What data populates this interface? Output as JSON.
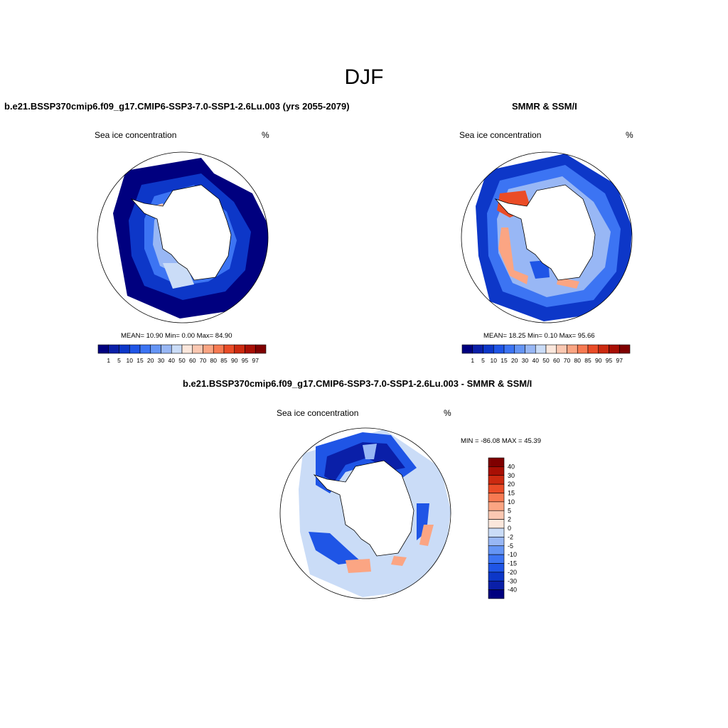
{
  "title": "DJF",
  "panels": {
    "model": {
      "title": "b.e21.BSSP370cmip6.f09_g17.CMIP6-SSP3-7.0-SSP1-2.6Lu.003 (yrs 2055-2079)",
      "left_label": "Sea ice concentration",
      "right_label": "%",
      "stats": "MEAN=  10.90  Min=   0.00  Max=  84.90"
    },
    "obs": {
      "title": "SMMR & SSM/I",
      "left_label": "Sea ice concentration",
      "right_label": "%",
      "stats": "MEAN=  18.25  Min=   0.10  Max=  95.66"
    },
    "diff": {
      "title": "b.e21.BSSP370cmip6.f09_g17.CMIP6-SSP3-7.0-SSP1-2.6Lu.003 - SMMR & SSM/I",
      "left_label": "Sea ice concentration",
      "right_label": "%",
      "stats": "MIN = -86.08 MAX =  45.39"
    }
  },
  "colorbars": {
    "concentration": {
      "labels": [
        "1",
        "5",
        "10",
        "15",
        "20",
        "30",
        "40",
        "50",
        "60",
        "70",
        "80",
        "85",
        "90",
        "95",
        "97"
      ],
      "colors": [
        "#00007f",
        "#0a1fa8",
        "#0d37c8",
        "#1f55e6",
        "#3c74f3",
        "#6595f5",
        "#98b7f5",
        "#cadcf7",
        "#fbe7dc",
        "#fbc8b2",
        "#fba583",
        "#f77a52",
        "#ea4c27",
        "#cc2a10",
        "#a80f04",
        "#7f0000"
      ]
    },
    "difference": {
      "labels": [
        "40",
        "30",
        "20",
        "15",
        "10",
        "5",
        "2",
        "0",
        "-2",
        "-5",
        "-10",
        "-15",
        "-20",
        "-30",
        "-40"
      ],
      "colors": [
        "#7f0000",
        "#a80f04",
        "#cc2a10",
        "#ea4c27",
        "#f77a52",
        "#fba583",
        "#fbc8b2",
        "#fbe7dc",
        "#cadcf7",
        "#98b7f5",
        "#6595f5",
        "#3c74f3",
        "#1f55e6",
        "#0d37c8",
        "#0a1fa8",
        "#00007f"
      ]
    }
  }
}
